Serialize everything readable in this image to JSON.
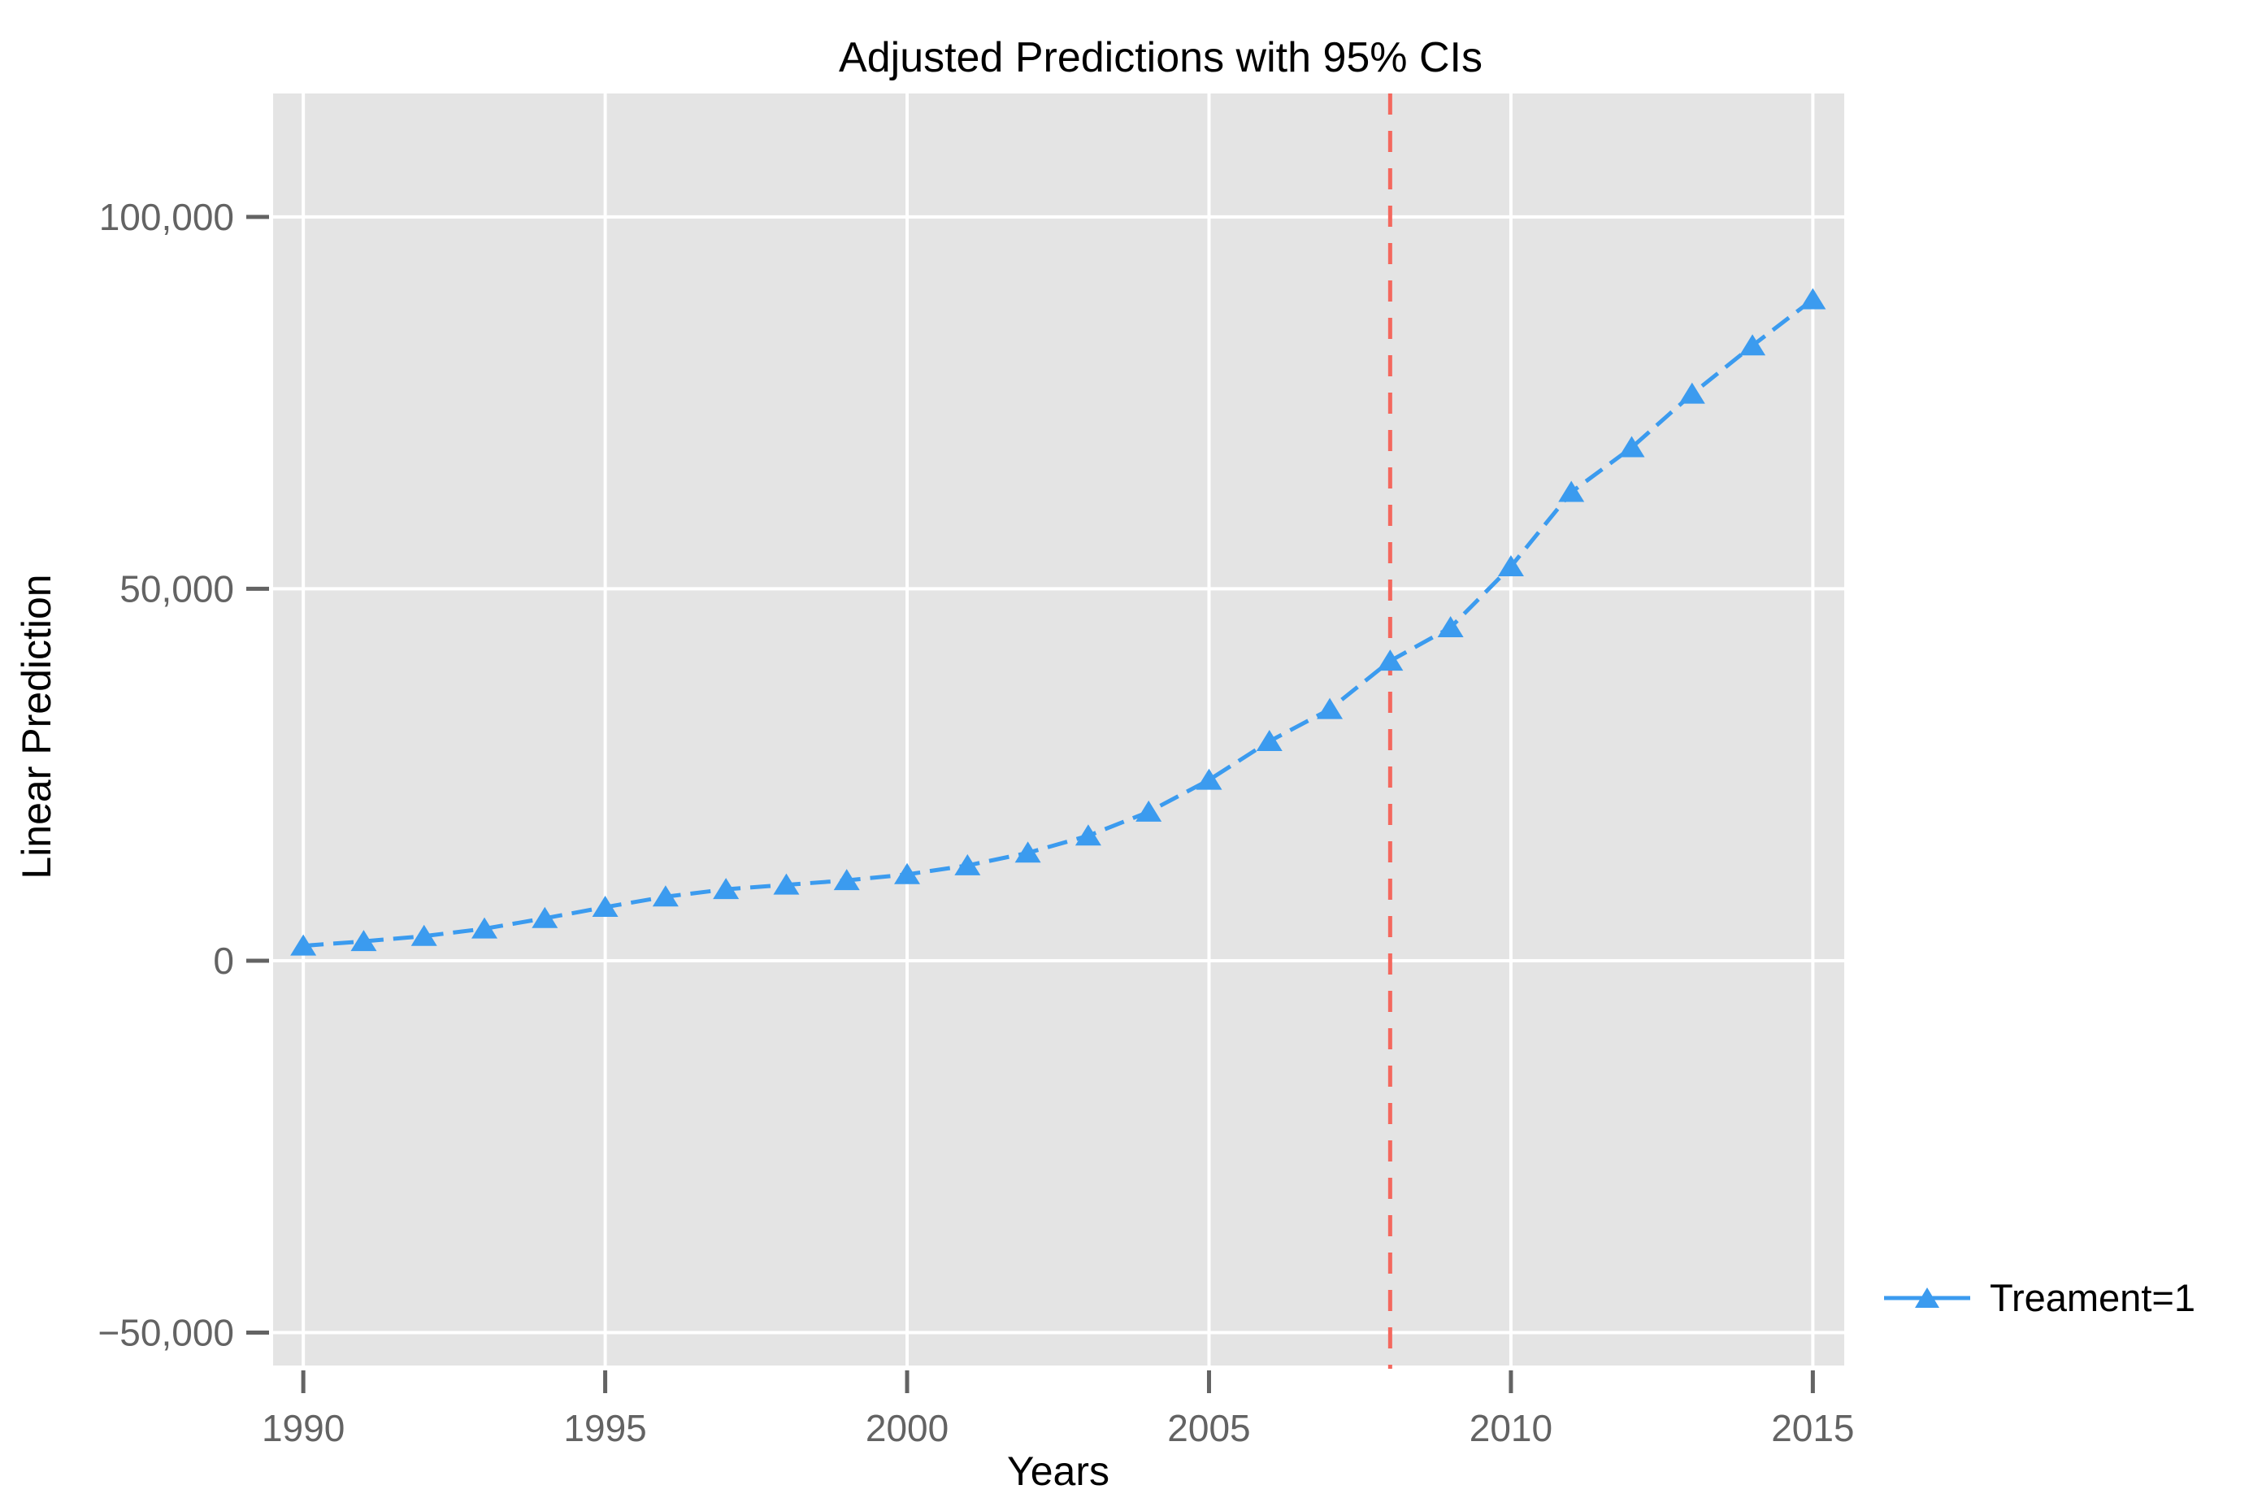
{
  "figure": {
    "title": "Adjusted Predictions with 95% CIs",
    "background_color": "#FFFFFF"
  },
  "legend": {
    "label": "Treament=1",
    "symbol": "triangle-line",
    "position": "right-bottom"
  },
  "colors": {
    "series_blue": "#3B9BEF",
    "reference_red": "#F4685E",
    "plot_background": "#E4E4E4",
    "gridline": "#FFFFFF",
    "tick": "#636363",
    "tick_label": "#636363",
    "text": "#000000"
  },
  "chart_data": {
    "type": "line",
    "title": "Adjusted Predictions with 95% CIs",
    "xlabel": "Years",
    "ylabel": "Linear Prediction",
    "grid": true,
    "legend_position": "outside-right-bottom",
    "line_style": "dashed",
    "marker": "triangle",
    "x": [
      1990,
      1991,
      1992,
      1993,
      1994,
      1995,
      1996,
      1997,
      1998,
      1999,
      2000,
      2001,
      2002,
      2003,
      2004,
      2005,
      2006,
      2007,
      2008,
      2009,
      2010,
      2011,
      2012,
      2013,
      2014,
      2015
    ],
    "series": [
      {
        "name": "Treament=1",
        "values": [
          2000,
          2600,
          3300,
          4300,
          5700,
          7200,
          8600,
          9600,
          10200,
          10800,
          11600,
          12800,
          14500,
          16800,
          20000,
          24300,
          29500,
          33800,
          40300,
          44800,
          53000,
          63000,
          69000,
          76200,
          82700,
          88900
        ]
      }
    ],
    "x_ticks": [
      1990,
      1995,
      2000,
      2005,
      2010,
      2015
    ],
    "x_tick_labels": [
      "1990",
      "1995",
      "2000",
      "2005",
      "2010",
      "2015"
    ],
    "y_ticks": [
      -50000,
      0,
      50000,
      100000
    ],
    "y_tick_labels": [
      "−50,000",
      "0",
      "50,000",
      "100,000"
    ],
    "xlim": [
      1989.5,
      2015.52
    ],
    "ylim": [
      -54430,
      116600
    ],
    "reference_line": {
      "axis": "x",
      "value": 2008,
      "style": "dashed"
    }
  }
}
